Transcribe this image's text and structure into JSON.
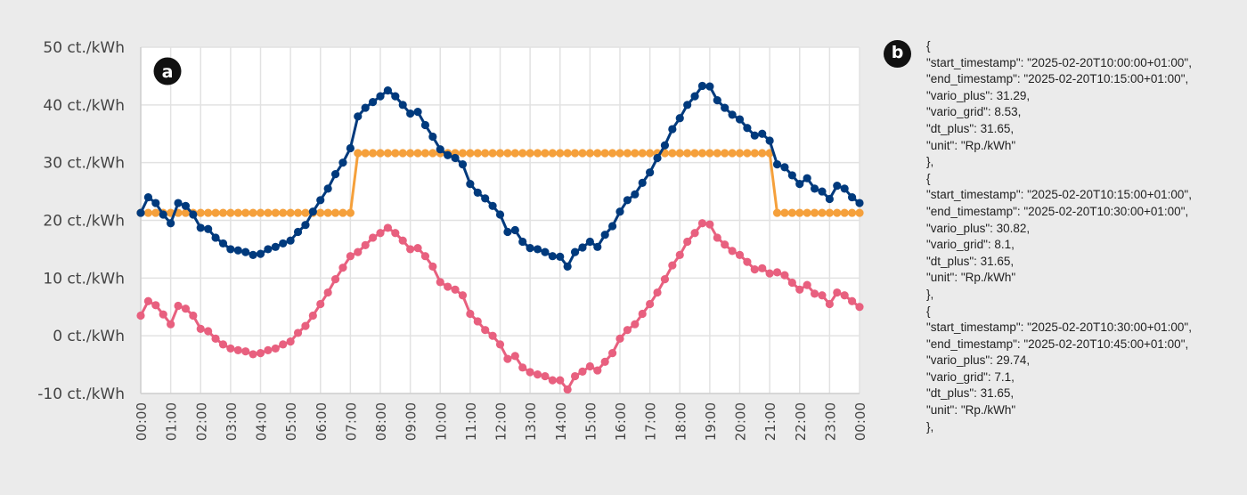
{
  "panel_a_label": "a",
  "panel_b_label": "b",
  "chart_data": {
    "type": "line",
    "title": "",
    "xlabel": "",
    "ylabel": "",
    "ylim": [
      -10,
      50
    ],
    "grid": true,
    "y_ticks": [
      "-10 ct./kWh",
      "0 ct./kWh",
      "10 ct./kWh",
      "20 ct./kWh",
      "30 ct./kWh",
      "40 ct./kWh",
      "50 ct./kWh"
    ],
    "y_tick_values": [
      -10,
      0,
      10,
      20,
      30,
      40,
      50
    ],
    "x_ticks": [
      "00:00",
      "01:00",
      "02:00",
      "03:00",
      "04:00",
      "05:00",
      "06:00",
      "07:00",
      "08:00",
      "09:00",
      "10:00",
      "11:00",
      "12:00",
      "13:00",
      "14:00",
      "15:00",
      "16:00",
      "17:00",
      "18:00",
      "19:00",
      "20:00",
      "21:00",
      "22:00",
      "23:00",
      "00:00"
    ],
    "x_interval_minutes": 15,
    "series": [
      {
        "color": "#f5a03b",
        "values": [
          21.3,
          21.3,
          21.3,
          21.3,
          21.3,
          21.3,
          21.3,
          21.3,
          21.3,
          21.3,
          21.3,
          21.3,
          21.3,
          21.3,
          21.3,
          21.3,
          21.3,
          21.3,
          21.3,
          21.3,
          21.3,
          21.3,
          21.3,
          21.3,
          21.3,
          21.3,
          21.3,
          21.3,
          21.3,
          31.65,
          31.65,
          31.65,
          31.65,
          31.65,
          31.65,
          31.65,
          31.65,
          31.65,
          31.65,
          31.65,
          31.65,
          31.65,
          31.65,
          31.65,
          31.65,
          31.65,
          31.65,
          31.65,
          31.65,
          31.65,
          31.65,
          31.65,
          31.65,
          31.65,
          31.65,
          31.65,
          31.65,
          31.65,
          31.65,
          31.65,
          31.65,
          31.65,
          31.65,
          31.65,
          31.65,
          31.65,
          31.65,
          31.65,
          31.65,
          31.65,
          31.65,
          31.65,
          31.65,
          31.65,
          31.65,
          31.65,
          31.65,
          31.65,
          31.65,
          31.65,
          31.65,
          31.65,
          31.65,
          31.65,
          31.65,
          21.3,
          21.3,
          21.3,
          21.3,
          21.3,
          21.3,
          21.3,
          21.3,
          21.3,
          21.3,
          21.3,
          21.3
        ]
      },
      {
        "color": "#003a7d",
        "values": [
          21.3,
          24,
          23,
          21,
          19.5,
          23,
          22.5,
          21,
          18.7,
          18.5,
          17,
          16,
          15,
          14.8,
          14.5,
          14,
          14.2,
          15,
          15.4,
          16,
          16.5,
          18,
          19.2,
          21.5,
          23.5,
          25.5,
          28,
          30,
          32.5,
          38,
          39.5,
          40.5,
          41.5,
          42.5,
          41.5,
          40,
          38.5,
          38.8,
          36.5,
          34.5,
          32.3,
          31.3,
          30.8,
          29.7,
          26.3,
          24.8,
          23.8,
          22.5,
          21,
          18,
          18.3,
          16.3,
          15.2,
          15,
          14.5,
          13.8,
          13.7,
          12,
          14.5,
          15.3,
          16.3,
          15.4,
          17.5,
          19,
          21.5,
          23.5,
          24.5,
          26.5,
          28.3,
          30.8,
          33,
          35.8,
          37.7,
          40,
          41.5,
          43.3,
          43.2,
          40.8,
          39.5,
          38.3,
          37.5,
          36,
          34.7,
          35,
          33.8,
          29.7,
          29.2,
          27.8,
          26.3,
          27.3,
          25.5,
          25,
          23.7,
          26,
          25.5,
          24,
          23
        ]
      },
      {
        "color": "#e8607f",
        "values": [
          3.5,
          6,
          5.3,
          3.7,
          2,
          5.2,
          4.7,
          3.5,
          1.2,
          0.8,
          -0.5,
          -1.5,
          -2.2,
          -2.5,
          -2.7,
          -3.2,
          -3,
          -2.5,
          -2.2,
          -1.5,
          -1,
          0.5,
          1.7,
          3.5,
          5.5,
          7.5,
          9.8,
          11.8,
          13.8,
          14.5,
          15.7,
          17,
          17.8,
          18.7,
          17.8,
          16.5,
          15,
          15.2,
          13.8,
          12,
          9.3,
          8.5,
          8,
          7,
          3.8,
          2.5,
          1,
          0,
          -1.5,
          -4,
          -3.5,
          -5.5,
          -6.3,
          -6.7,
          -7,
          -7.7,
          -7.7,
          -9.3,
          -7,
          -6.2,
          -5.3,
          -6,
          -4.5,
          -3,
          -0.5,
          1,
          2,
          3.8,
          5.5,
          7.5,
          9.8,
          12.2,
          14,
          16.3,
          17.8,
          19.5,
          19.3,
          17,
          15.8,
          14.7,
          14,
          12.8,
          11.5,
          11.7,
          10.8,
          11,
          10.5,
          9.2,
          8,
          8.8,
          7.3,
          7,
          5.5,
          7.5,
          7,
          6,
          5
        ]
      }
    ]
  },
  "json_panel": {
    "lines": [
      "{",
      "\"start_timestamp\": \"2025-02-20T10:00:00+01:00\",",
      "\"end_timestamp\": \"2025-02-20T10:15:00+01:00\",",
      "\"vario_plus\": 31.29,",
      "\"vario_grid\": 8.53,",
      "\"dt_plus\": 31.65,",
      "\"unit\": \"Rp./kWh\"",
      "},",
      "{",
      "\"start_timestamp\": \"2025-02-20T10:15:00+01:00\",",
      "\"end_timestamp\": \"2025-02-20T10:30:00+01:00\",",
      "\"vario_plus\": 30.82,",
      "\"vario_grid\": 8.1,",
      "\"dt_plus\": 31.65,",
      "\"unit\": \"Rp./kWh\"",
      "},",
      "{",
      "\"start_timestamp\": \"2025-02-20T10:30:00+01:00\",",
      "\"end_timestamp\": \"2025-02-20T10:45:00+01:00\",",
      "\"vario_plus\": 29.74,",
      "\"vario_grid\": 7.1,",
      "\"dt_plus\": 31.65,",
      "\"unit\": \"Rp./kWh\"",
      "},"
    ]
  }
}
